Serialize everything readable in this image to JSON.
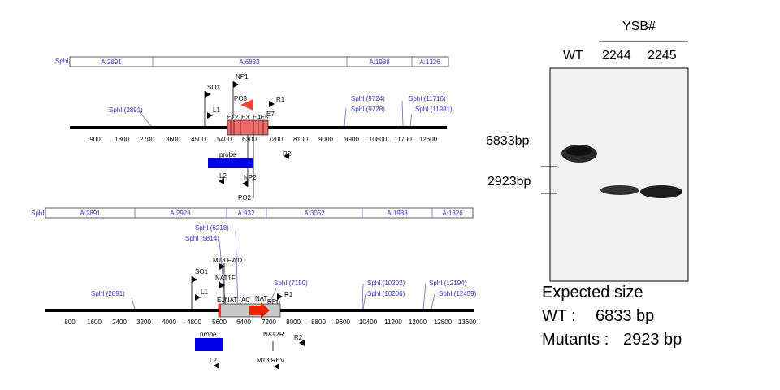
{
  "top_map": {
    "digest": {
      "enzyme": "SphI",
      "fragments": [
        "A:2891",
        "A:6833",
        "A:1988",
        "A:1326"
      ]
    },
    "scale_ticks": [
      "900",
      "1800",
      "2700",
      "3600",
      "4500",
      "5400",
      "6300",
      "7200",
      "8100",
      "9000",
      "9900",
      "10800",
      "11700",
      "12600"
    ],
    "sites": [
      "SphI (2891)",
      "SphI (9724)",
      "SphI (9728)",
      "SphI (11716)",
      "SphI (11981)"
    ],
    "primers": [
      "SO1",
      "L1",
      "NP1",
      "PO3",
      "R1",
      "R2",
      "L2",
      "NP2",
      "PO2"
    ],
    "exons": [
      "E12",
      "E3",
      "E4E5",
      "E7"
    ],
    "probe_label": "probe"
  },
  "bottom_map": {
    "digest": {
      "enzyme": "SphI",
      "fragments": [
        "A:2891",
        "A:2923",
        "A:932",
        "A:3052",
        "A:1988",
        "A:1326"
      ]
    },
    "scale_ticks": [
      "800",
      "1600",
      "2400",
      "3200",
      "4000",
      "4800",
      "5600",
      "6400",
      "7200",
      "8000",
      "8800",
      "9600",
      "10400",
      "11200",
      "12000",
      "12800",
      "13600"
    ],
    "sites": [
      "SphI (2891)",
      "SphI (5814)",
      "SphI (6218)",
      "SphI (7150)",
      "SphI (10202)",
      "SphI (10206)",
      "SphI (12194)",
      "SphI (12459)"
    ],
    "primers": [
      "SO1",
      "L1",
      "M13 FWD",
      "NAT1F",
      "R1",
      "R2",
      "L2",
      "NAT2R",
      "M13 REV"
    ],
    "features": [
      "E1NAT (AC",
      "NAT",
      "RPt)"
    ],
    "probe_label": "probe"
  },
  "gel": {
    "group_label": "YSB#",
    "lanes": [
      "WT",
      "2244",
      "2245"
    ],
    "markers": [
      "6833bp",
      "2923bp"
    ]
  },
  "expected": {
    "title": "Expected size",
    "wt_label": "WT :",
    "wt_value": "6833 bp",
    "mut_label": "Mutants :",
    "mut_value": "2923  bp"
  }
}
